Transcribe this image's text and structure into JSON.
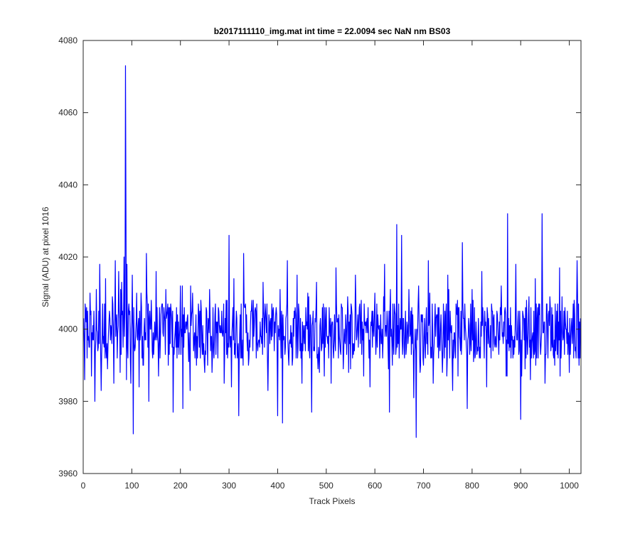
{
  "chart_data": {
    "type": "line",
    "title": "b2017111110_img.mat int time = 22.0094 sec  NaN nm BS03",
    "xlabel": "Track Pixels",
    "ylabel": "Signal (ADU) at pixel 1016",
    "xlim": [
      0,
      1024
    ],
    "ylim": [
      3960,
      4080
    ],
    "xticks": [
      0,
      100,
      200,
      300,
      400,
      500,
      600,
      700,
      800,
      900,
      1000
    ],
    "yticks": [
      3960,
      3980,
      4000,
      4020,
      4040,
      4060,
      4080
    ],
    "grid": false,
    "legend": "none",
    "series": [
      {
        "color": "#0000ff",
        "description": "Noisy signal fluctuating around ~4000 ADU over 1024 track pixels; approximate landmark values read off the plot (remaining samples are noise around these).",
        "x": [
          1,
          3,
          5,
          8,
          11,
          14,
          17,
          20,
          24,
          27,
          30,
          34,
          37,
          40,
          43,
          46,
          50,
          53,
          56,
          60,
          63,
          66,
          70,
          73,
          76,
          79,
          82,
          84,
          86,
          87,
          88,
          89,
          90,
          92,
          95,
          98,
          101,
          103,
          105,
          110,
          115,
          120,
          125,
          130,
          135,
          140,
          145,
          150,
          155,
          160,
          165,
          170,
          175,
          180,
          185,
          190,
          195,
          200,
          205,
          210,
          215,
          220,
          225,
          230,
          240,
          250,
          260,
          270,
          280,
          290,
          300,
          302,
          305,
          310,
          320,
          325,
          330,
          340,
          350,
          360,
          370,
          380,
          390,
          400,
          405,
          410,
          420,
          430,
          440,
          450,
          460,
          470,
          480,
          490,
          500,
          510,
          520,
          530,
          540,
          550,
          560,
          570,
          580,
          590,
          600,
          610,
          620,
          630,
          640,
          645,
          650,
          655,
          660,
          670,
          680,
          685,
          690,
          700,
          710,
          720,
          730,
          740,
          750,
          760,
          770,
          775,
          780,
          790,
          800,
          810,
          820,
          830,
          840,
          850,
          860,
          870,
          873,
          880,
          890,
          900,
          910,
          920,
          930,
          940,
          944,
          950,
          960,
          970,
          980,
          990,
          1000,
          1010,
          1016,
          1020,
          1023
        ],
        "y": [
          4003,
          3986,
          4005,
          3992,
          3998,
          4010,
          3987,
          4001,
          3980,
          4011,
          3994,
          4018,
          3983,
          4007,
          3995,
          4014,
          3989,
          4002,
          3997,
          4009,
          3985,
          4019,
          3992,
          4016,
          3988,
          4013,
          3995,
          4020,
          4005,
          4073,
          4030,
          3986,
          4018,
          3992,
          4004,
          3985,
          4015,
          3971,
          3996,
          4010,
          3984,
          4006,
          3999,
          4021,
          3980,
          4008,
          3993,
          4016,
          3987,
          4004,
          3998,
          4011,
          3990,
          4007,
          3977,
          4002,
          3995,
          4012,
          3978,
          3999,
          4004,
          3983,
          4010,
          3992,
          4005,
          3988,
          4011,
          3997,
          4001,
          3985,
          4026,
          3995,
          3984,
          4014,
          3976,
          4007,
          4021,
          3990,
          4008,
          3996,
          4013,
          3983,
          4005,
          3976,
          4011,
          3974,
          4019,
          3990,
          4015,
          3985,
          4002,
          3977,
          4013,
          3994,
          4006,
          3985,
          4017,
          3993,
          4004,
          3989,
          4015,
          3996,
          4001,
          3984,
          4010,
          3992,
          4018,
          3977,
          4007,
          4029,
          3992,
          4026,
          3995,
          4011,
          3981,
          3970,
          4012,
          3990,
          4019,
          3985,
          4006,
          3994,
          4015,
          3983,
          4008,
          3997,
          4024,
          3978,
          4011,
          3993,
          4016,
          3984,
          4007,
          3995,
          4012,
          3987,
          4032,
          3992,
          4018,
          3975,
          4006,
          3986,
          4014,
          3996,
          4032,
          3985,
          4009,
          3990,
          4017,
          3993,
          3988,
          4008,
          4019,
          3990,
          4003
        ]
      }
    ]
  }
}
